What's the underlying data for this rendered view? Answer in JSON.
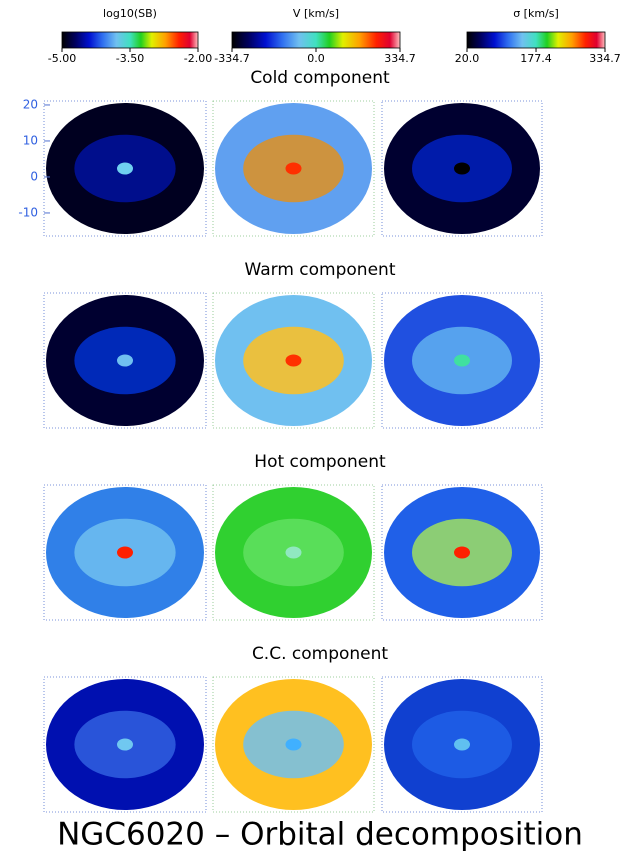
{
  "colorbars": [
    {
      "label": "log10(SB)",
      "lim": [
        -5,
        -2
      ],
      "ticks": [
        {
          "value": -5,
          "label": "-5.00"
        },
        {
          "value": -3.5,
          "label": "-3.50"
        },
        {
          "value": -2,
          "label": "-2.00"
        }
      ]
    },
    {
      "label": "V [km/s]",
      "lim": [
        -334.7,
        334.7
      ],
      "ticks": [
        -334.7,
        {
          "value": 0,
          "label": "0.0"
        },
        334.7
      ]
    },
    {
      "label": "σ [km/s]",
      "lim": [
        20,
        334.7
      ],
      "ticks": [
        {
          "value": 20,
          "label": "20.0"
        },
        177.4,
        334.7
      ]
    }
  ],
  "rows": [
    "Cold component",
    "Warm component",
    "Hot component",
    "C.C. component"
  ],
  "y_axis": {
    "ylim": [
      -16.4,
      21.1
    ],
    "yticks": [
      20,
      10,
      0,
      -10
    ]
  },
  "title": "NGC6020 – Orbital decomposition"
}
